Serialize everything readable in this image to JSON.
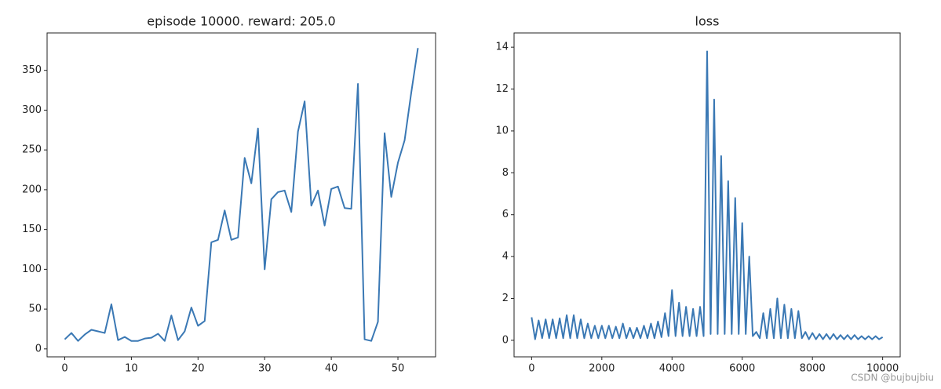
{
  "chart_data": [
    {
      "type": "line",
      "title": "episode 10000. reward: 205.0",
      "color": "#3a78b4",
      "x": [
        0,
        1,
        2,
        3,
        4,
        5,
        6,
        7,
        8,
        9,
        10,
        11,
        12,
        13,
        14,
        15,
        16,
        17,
        18,
        19,
        20,
        21,
        22,
        23,
        24,
        25,
        26,
        27,
        28,
        29,
        30,
        31,
        32,
        33,
        34,
        35,
        36,
        37,
        38,
        39,
        40,
        41,
        42,
        43,
        44,
        45,
        46,
        47,
        48,
        49,
        50,
        51,
        52,
        53
      ],
      "values": [
        12,
        20,
        10,
        18,
        24,
        22,
        20,
        56,
        11,
        15,
        10,
        10,
        13,
        14,
        19,
        10,
        42,
        11,
        22,
        52,
        29,
        35,
        134,
        137,
        174,
        137,
        140,
        240,
        208,
        277,
        100,
        188,
        197,
        199,
        172,
        273,
        311,
        180,
        199,
        155,
        201,
        204,
        177,
        176,
        333,
        12,
        10,
        34,
        271,
        191,
        234,
        262,
        322,
        378
      ],
      "xlim": [
        -2.65,
        55.65
      ],
      "ylim": [
        -10,
        397
      ],
      "xticks": [
        0,
        10,
        20,
        30,
        40,
        50
      ],
      "yticks": [
        0,
        50,
        100,
        150,
        200,
        250,
        300,
        350
      ]
    },
    {
      "type": "line",
      "title": "loss",
      "color": "#3a78b4",
      "x": [
        0,
        100,
        200,
        300,
        400,
        500,
        600,
        700,
        800,
        900,
        1000,
        1100,
        1200,
        1300,
        1400,
        1500,
        1600,
        1700,
        1800,
        1900,
        2000,
        2100,
        2200,
        2300,
        2400,
        2500,
        2600,
        2700,
        2800,
        2900,
        3000,
        3100,
        3200,
        3300,
        3400,
        3500,
        3600,
        3700,
        3800,
        3900,
        4000,
        4100,
        4200,
        4300,
        4400,
        4500,
        4600,
        4700,
        4800,
        4900,
        5000,
        5100,
        5200,
        5300,
        5400,
        5500,
        5600,
        5700,
        5800,
        5900,
        6000,
        6100,
        6200,
        6300,
        6400,
        6500,
        6600,
        6700,
        6800,
        6900,
        7000,
        7100,
        7200,
        7300,
        7400,
        7500,
        7600,
        7700,
        7800,
        7900,
        8000,
        8100,
        8200,
        8300,
        8400,
        8500,
        8600,
        8700,
        8800,
        8900,
        9000,
        9100,
        9200,
        9300,
        9400,
        9500,
        9600,
        9700,
        9800,
        9900,
        10000
      ],
      "values": [
        1.1,
        0.05,
        0.95,
        0.1,
        1.0,
        0.1,
        1.0,
        0.1,
        1.05,
        0.1,
        1.2,
        0.1,
        1.2,
        0.1,
        1.0,
        0.1,
        0.8,
        0.1,
        0.7,
        0.1,
        0.7,
        0.1,
        0.7,
        0.1,
        0.65,
        0.1,
        0.8,
        0.1,
        0.6,
        0.1,
        0.6,
        0.1,
        0.7,
        0.1,
        0.8,
        0.1,
        0.9,
        0.15,
        1.3,
        0.2,
        2.4,
        0.2,
        1.8,
        0.2,
        1.6,
        0.2,
        1.5,
        0.2,
        1.6,
        0.2,
        13.8,
        0.3,
        11.5,
        0.3,
        8.8,
        0.3,
        7.6,
        0.3,
        6.8,
        0.3,
        5.6,
        0.3,
        4.0,
        0.2,
        0.4,
        0.1,
        1.3,
        0.1,
        1.5,
        0.1,
        2.0,
        0.1,
        1.7,
        0.1,
        1.5,
        0.1,
        1.4,
        0.1,
        0.4,
        0.05,
        0.35,
        0.05,
        0.3,
        0.05,
        0.3,
        0.05,
        0.3,
        0.05,
        0.25,
        0.05,
        0.25,
        0.05,
        0.25,
        0.05,
        0.2,
        0.05,
        0.2,
        0.05,
        0.2,
        0.05,
        0.15
      ],
      "xlim": [
        -500,
        10500
      ],
      "ylim": [
        -0.79,
        14.68
      ],
      "xticks": [
        0,
        2000,
        4000,
        6000,
        8000,
        10000
      ],
      "yticks": [
        0,
        2,
        4,
        6,
        8,
        10,
        12,
        14
      ]
    }
  ],
  "watermark": "CSDN @bujbujbiu"
}
